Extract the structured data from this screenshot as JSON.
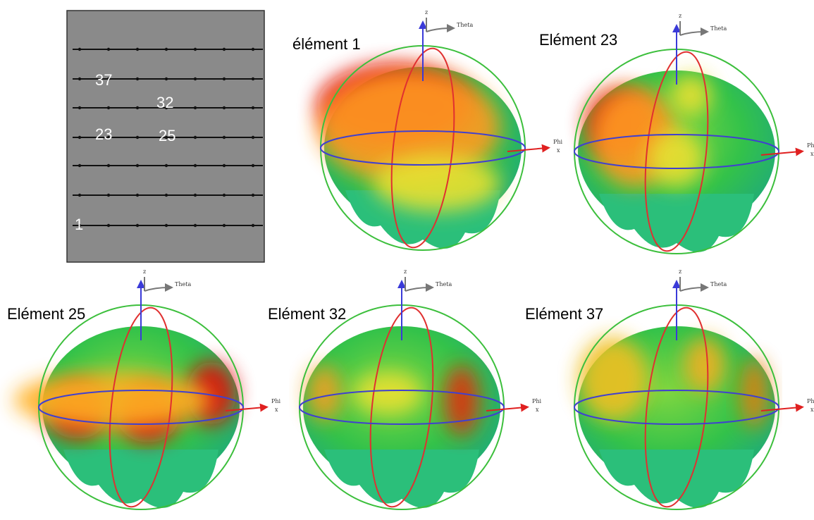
{
  "array_labels": [
    "37",
    "32",
    "23",
    "25",
    "1"
  ],
  "panels": [
    {
      "label": "élément 1"
    },
    {
      "label": "Elément 23"
    },
    {
      "label": "Elément 25"
    },
    {
      "label": "Elément 32"
    },
    {
      "label": "Elément 37"
    }
  ],
  "axis_labels": {
    "z": "z",
    "theta": "Theta",
    "phi": "Phi",
    "x": "x"
  }
}
